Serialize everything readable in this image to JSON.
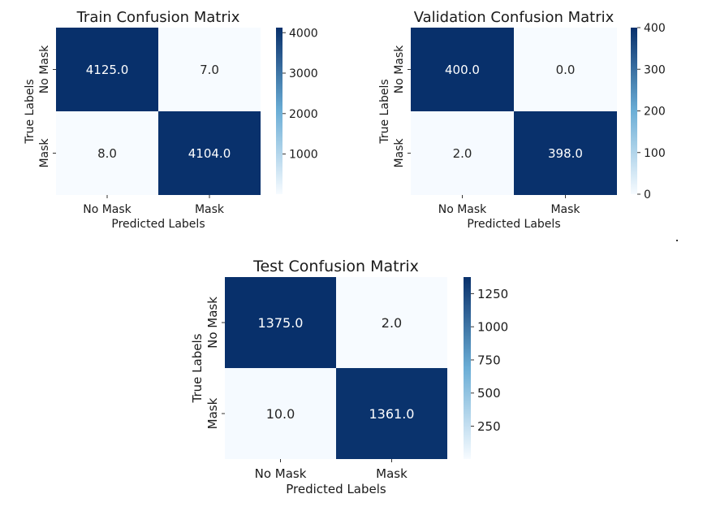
{
  "colors": {
    "cmap_low": "#f7fbff",
    "cmap_mid": "#6baed6",
    "cmap_high": "#08306b",
    "text_light": "#ffffff",
    "text_dark": "#262626",
    "axis_text": "#1a1a1a"
  },
  "chart_data": [
    {
      "type": "heatmap",
      "title": "Train Confusion Matrix",
      "xlabel": "Predicted Labels",
      "ylabel": "True Labels",
      "x_categories": [
        "No Mask",
        "Mask"
      ],
      "y_categories": [
        "No Mask",
        "Mask"
      ],
      "values": [
        [
          4125.0,
          7.0
        ],
        [
          8.0,
          4104.0
        ]
      ],
      "cell_labels": [
        [
          "4125.0",
          "7.0"
        ],
        [
          "8.0",
          "4104.0"
        ]
      ],
      "colorbar": {
        "min": 7,
        "max": 4125,
        "ticks": [
          1000,
          2000,
          3000,
          4000
        ],
        "tick_labels": [
          "1000",
          "2000",
          "3000",
          "4000"
        ]
      }
    },
    {
      "type": "heatmap",
      "title": "Validation Confusion Matrix",
      "xlabel": "Predicted Labels",
      "ylabel": "True Labels",
      "x_categories": [
        "No Mask",
        "Mask"
      ],
      "y_categories": [
        "No Mask",
        "Mask"
      ],
      "values": [
        [
          400.0,
          0.0
        ],
        [
          2.0,
          398.0
        ]
      ],
      "cell_labels": [
        [
          "400.0",
          "0.0"
        ],
        [
          "2.0",
          "398.0"
        ]
      ],
      "colorbar": {
        "min": 0,
        "max": 400,
        "ticks": [
          0,
          100,
          200,
          300,
          400
        ],
        "tick_labels": [
          "0",
          "100",
          "200",
          "300",
          "400"
        ]
      }
    },
    {
      "type": "heatmap",
      "title": "Test Confusion Matrix",
      "xlabel": "Predicted Labels",
      "ylabel": "True Labels",
      "x_categories": [
        "No Mask",
        "Mask"
      ],
      "y_categories": [
        "No Mask",
        "Mask"
      ],
      "values": [
        [
          1375.0,
          2.0
        ],
        [
          10.0,
          1361.0
        ]
      ],
      "cell_labels": [
        [
          "1375.0",
          "2.0"
        ],
        [
          "10.0",
          "1361.0"
        ]
      ],
      "colorbar": {
        "min": 2,
        "max": 1375,
        "ticks": [
          250,
          500,
          750,
          1000,
          1250
        ],
        "tick_labels": [
          "250",
          "500",
          "750",
          "1000",
          "1250"
        ]
      }
    }
  ]
}
